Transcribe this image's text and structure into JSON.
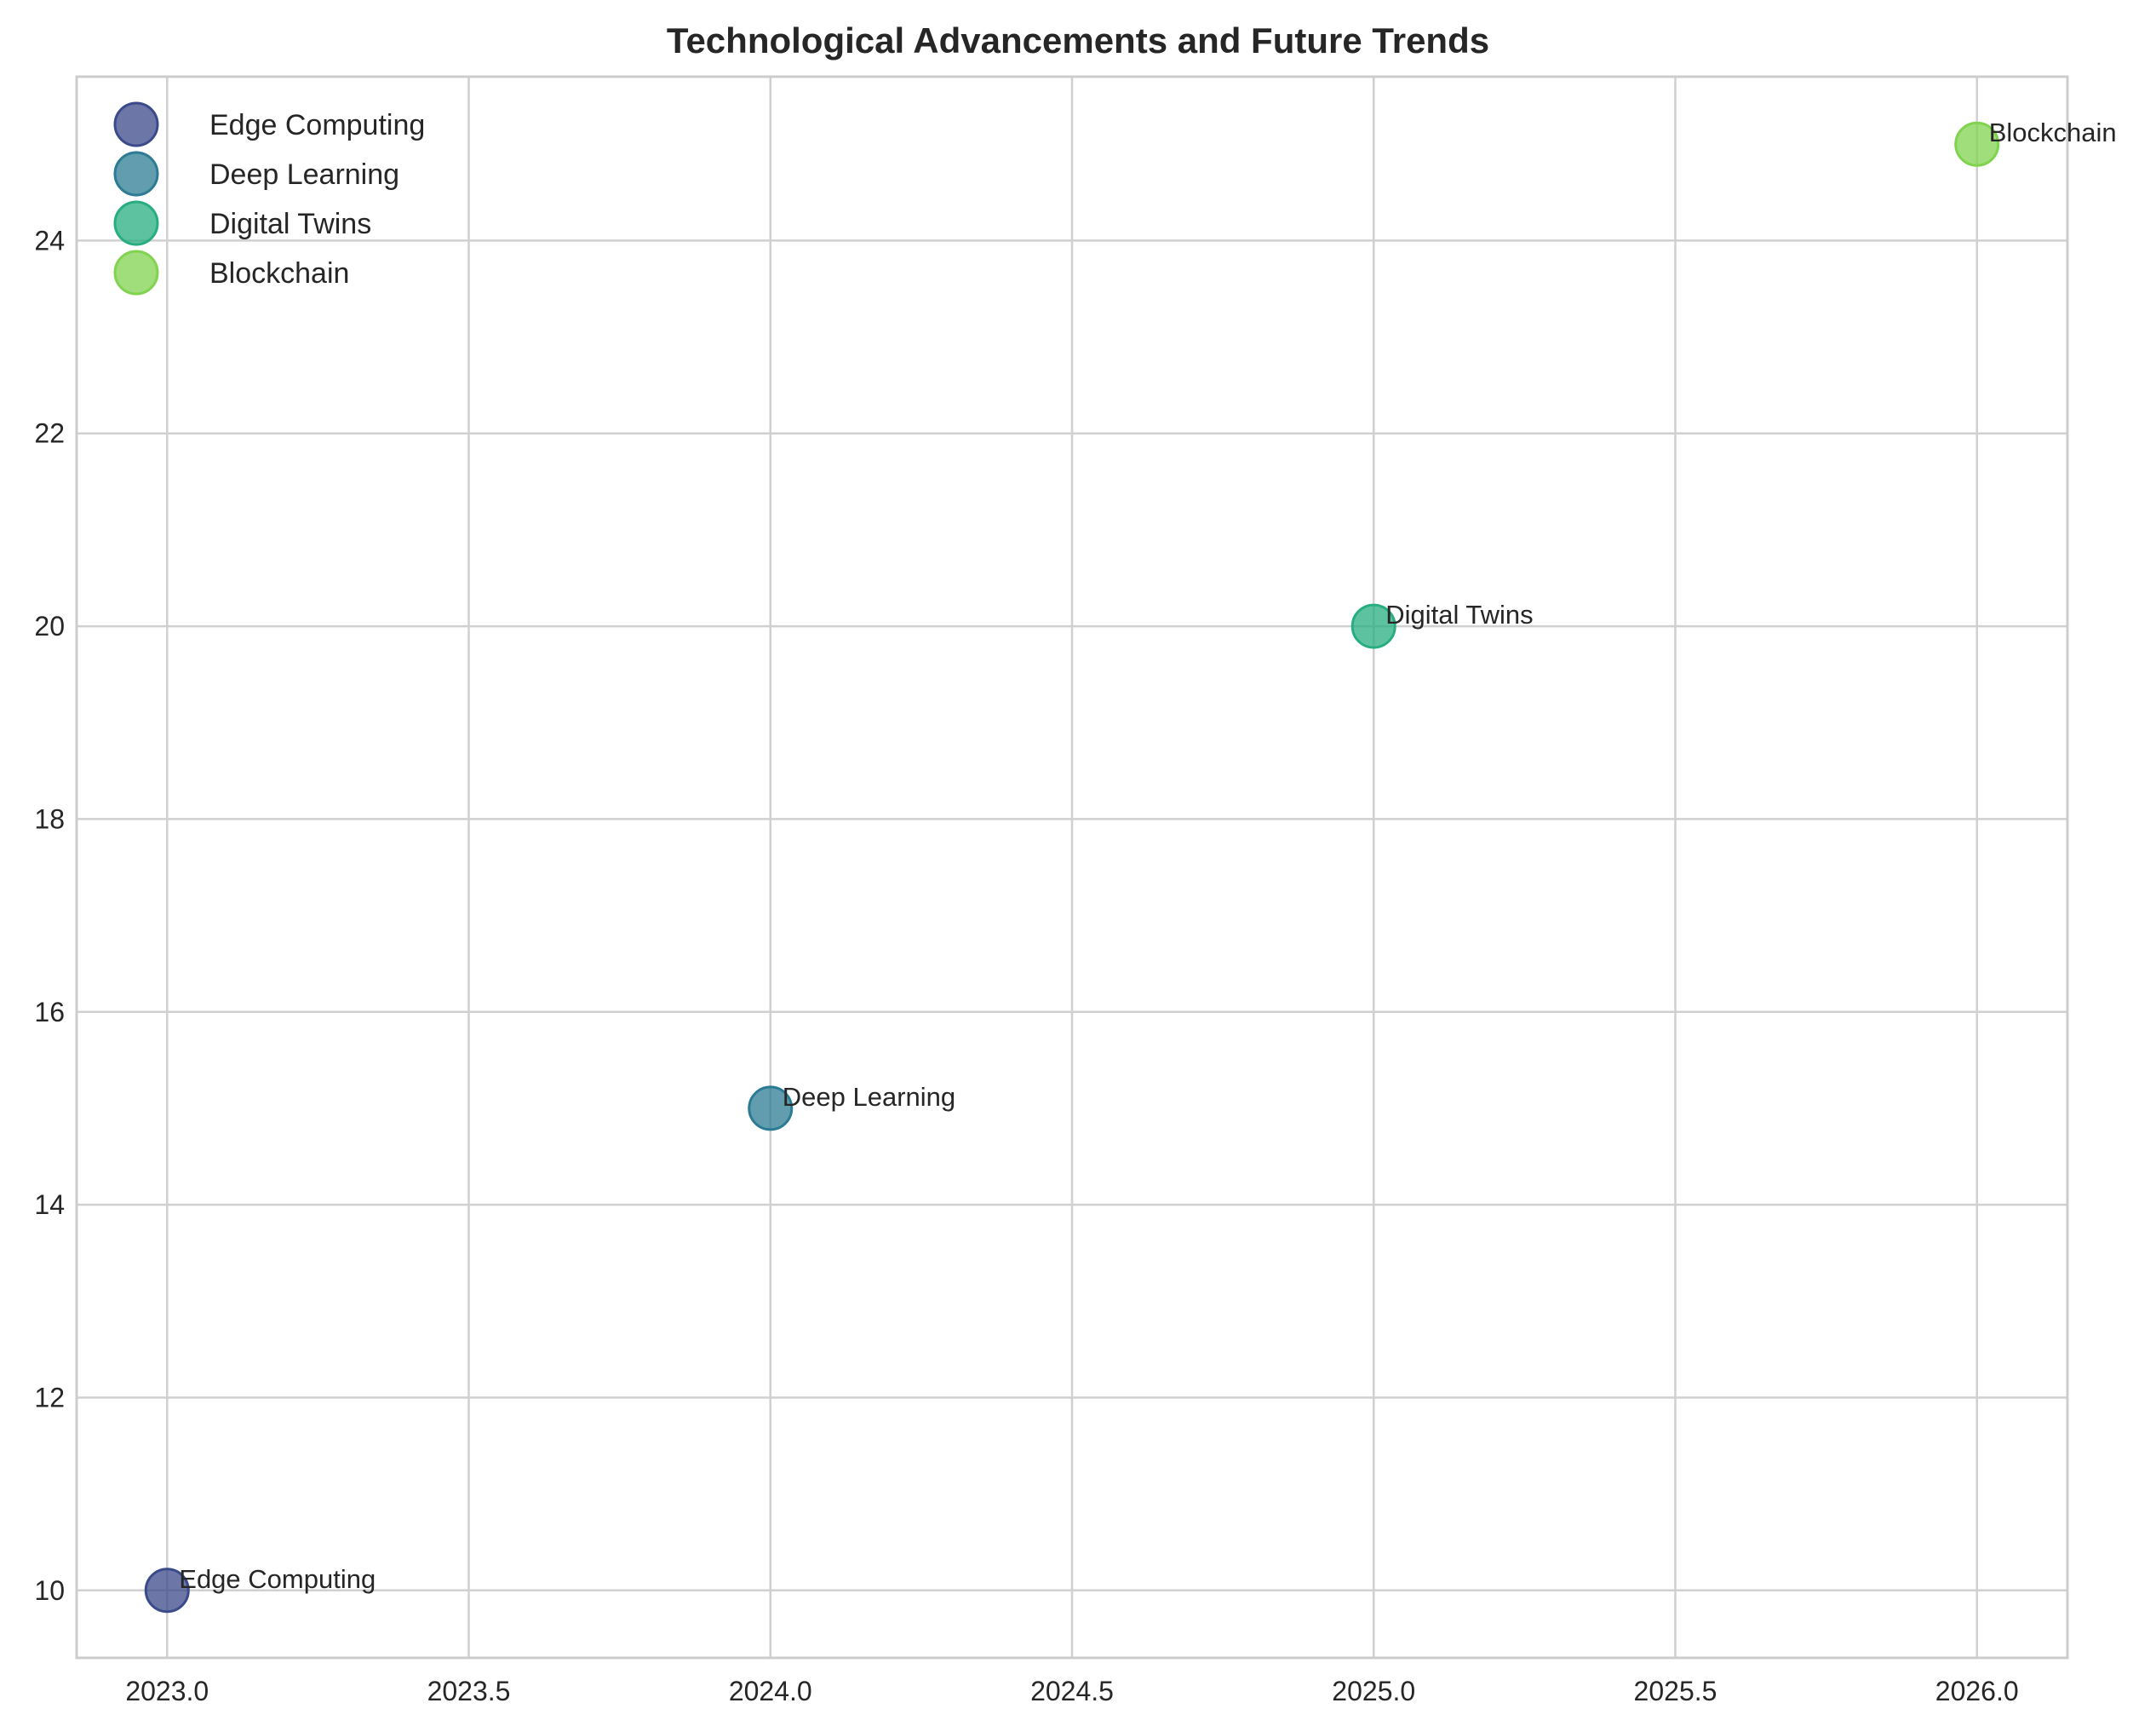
{
  "chart_data": {
    "type": "scatter",
    "title": "Technological Advancements and Future Trends",
    "xlabel": "",
    "ylabel": "",
    "xlim": [
      2022.85,
      2026.15
    ],
    "ylim": [
      9.3,
      25.7
    ],
    "x_ticks": [
      2023.0,
      2023.5,
      2024.0,
      2024.5,
      2025.0,
      2025.5,
      2026.0
    ],
    "x_tick_labels": [
      "2023.0",
      "2023.5",
      "2024.0",
      "2024.5",
      "2025.0",
      "2025.5",
      "2026.0"
    ],
    "y_ticks": [
      10,
      12,
      14,
      16,
      18,
      20,
      22,
      24
    ],
    "y_tick_labels": [
      "10",
      "12",
      "14",
      "16",
      "18",
      "20",
      "22",
      "24"
    ],
    "grid": true,
    "legend_position": "top-left",
    "series": [
      {
        "name": "Edge Computing",
        "x": [
          2023
        ],
        "y": [
          10
        ],
        "label": "Edge Computing",
        "color": "#3b4a8a"
      },
      {
        "name": "Deep Learning",
        "x": [
          2024
        ],
        "y": [
          15
        ],
        "label": "Deep Learning",
        "color": "#2c7b94"
      },
      {
        "name": "Digital Twins",
        "x": [
          2025
        ],
        "y": [
          20
        ],
        "label": "Digital Twins",
        "color": "#27ad80"
      },
      {
        "name": "Blockchain",
        "x": [
          2026
        ],
        "y": [
          25
        ],
        "label": "Blockchain",
        "color": "#7fd34e"
      }
    ]
  }
}
